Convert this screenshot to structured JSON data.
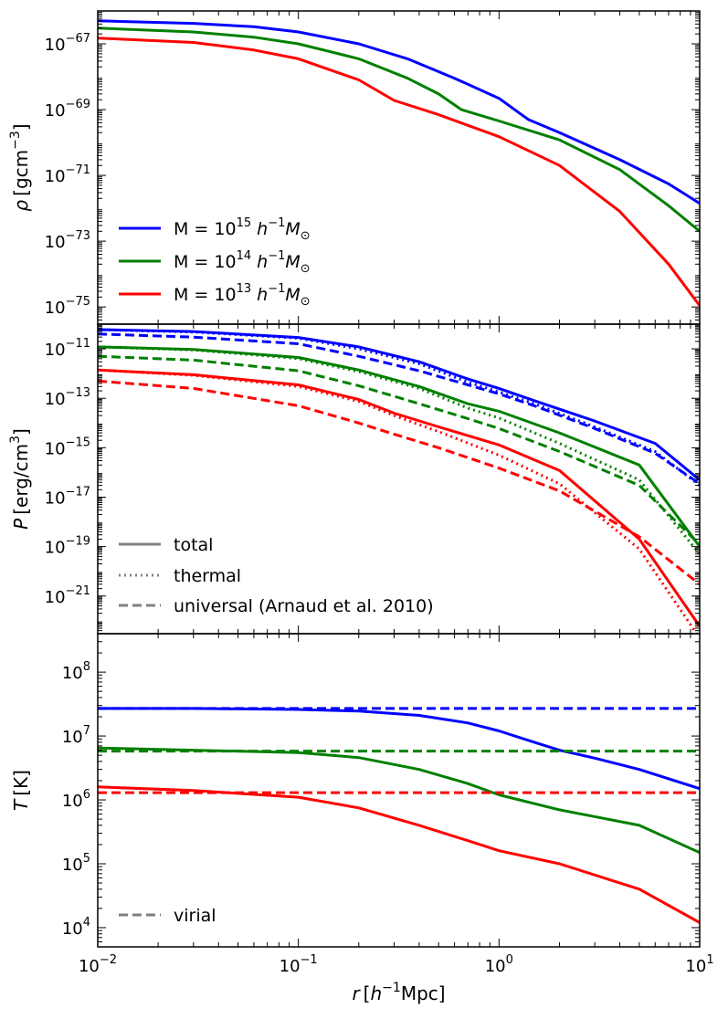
{
  "figure": {
    "xlabel_main": "r",
    "xlabel_unit_open": "[",
    "xlabel_unit_h": "h",
    "xlabel_unit_exp": "−1",
    "xlabel_unit_rest": "Mpc]",
    "x_ticks": [
      {
        "value": 0.01,
        "base": "10",
        "exp": "−2"
      },
      {
        "value": 0.1,
        "base": "10",
        "exp": "−1"
      },
      {
        "value": 1,
        "base": "10",
        "exp": "0"
      },
      {
        "value": 10,
        "base": "10",
        "exp": "1"
      }
    ]
  },
  "chart_data": [
    {
      "type": "line",
      "panel": "density",
      "xscale": "log",
      "yscale": "log",
      "xlim": [
        0.01,
        10
      ],
      "ylim": [
        3e-76,
        1e-66
      ],
      "ylabel": {
        "symbol": "ρ",
        "unit_open": "[gcm",
        "unit_exp": "−3",
        "unit_close": "]"
      },
      "y_ticks": [
        {
          "value": 1e-67,
          "base": "10",
          "exp": "−67"
        },
        {
          "value": 1e-69,
          "base": "10",
          "exp": "−69"
        },
        {
          "value": 1e-71,
          "base": "10",
          "exp": "−71"
        },
        {
          "value": 1e-73,
          "base": "10",
          "exp": "−73"
        },
        {
          "value": 1e-75,
          "base": "10",
          "exp": "−75"
        }
      ],
      "legend": {
        "position": "lower-left",
        "entries": [
          {
            "series": "M15",
            "prefix": "M = 10",
            "exp": "15",
            "mid": " h",
            "mid_exp": "−1",
            "suffix": "M",
            "sub": "⊙"
          },
          {
            "series": "M14",
            "prefix": "M = 10",
            "exp": "14",
            "mid": " h",
            "mid_exp": "−1",
            "suffix": "M",
            "sub": "⊙"
          },
          {
            "series": "M13",
            "prefix": "M = 10",
            "exp": "13",
            "mid": " h",
            "mid_exp": "−1",
            "suffix": "M",
            "sub": "⊙"
          }
        ]
      },
      "series": [
        {
          "name": "M15",
          "color": "#0000ff",
          "style": "solid",
          "x": [
            0.01,
            0.03,
            0.06,
            0.1,
            0.2,
            0.35,
            0.6,
            1.0,
            1.4,
            2.0,
            4.0,
            7.0,
            10.0
          ],
          "y": [
            5e-67,
            4.2e-67,
            3.3e-67,
            2.3e-67,
            1e-67,
            3.5e-68,
            9e-69,
            2.2e-69,
            5e-70,
            2e-70,
            3e-71,
            5.5e-72,
            1.4e-72
          ]
        },
        {
          "name": "M14",
          "color": "#008000",
          "style": "solid",
          "x": [
            0.01,
            0.03,
            0.06,
            0.1,
            0.2,
            0.35,
            0.5,
            0.65,
            1.0,
            2.0,
            4.0,
            7.0,
            10.0
          ],
          "y": [
            3e-67,
            2.3e-67,
            1.6e-67,
            1e-67,
            3.5e-68,
            9e-69,
            3e-69,
            1e-69,
            4.5e-70,
            1.2e-70,
            1.5e-71,
            1.2e-72,
            2e-73
          ]
        },
        {
          "name": "M13",
          "color": "#ff0000",
          "style": "solid",
          "x": [
            0.01,
            0.03,
            0.06,
            0.1,
            0.2,
            0.3,
            0.5,
            1.0,
            2.0,
            4.0,
            7.0,
            10.0
          ],
          "y": [
            1.5e-67,
            1.1e-67,
            6.5e-68,
            3.5e-68,
            8e-69,
            1.9e-69,
            7e-70,
            1.5e-70,
            2e-71,
            8e-73,
            2e-74,
            1.1e-75
          ]
        }
      ]
    },
    {
      "type": "line",
      "panel": "pressure",
      "xscale": "log",
      "yscale": "log",
      "xlim": [
        0.01,
        10
      ],
      "ylim": [
        3e-23,
        1e-10
      ],
      "ylabel": {
        "symbol": "P",
        "unit_open": "[erg/cm",
        "unit_exp": "3",
        "unit_close": "]"
      },
      "y_ticks": [
        {
          "value": 1e-11,
          "base": "10",
          "exp": "−11"
        },
        {
          "value": 1e-13,
          "base": "10",
          "exp": "−13"
        },
        {
          "value": 1e-15,
          "base": "10",
          "exp": "−15"
        },
        {
          "value": 1e-17,
          "base": "10",
          "exp": "−17"
        },
        {
          "value": 1e-19,
          "base": "10",
          "exp": "−19"
        },
        {
          "value": 1e-21,
          "base": "10",
          "exp": "−21"
        }
      ],
      "legend": {
        "position": "lower-left",
        "color": "#808080",
        "entries": [
          {
            "style": "solid",
            "label": "total"
          },
          {
            "style": "dotted",
            "label": "thermal"
          },
          {
            "style": "dashed",
            "label": "universal (Arnaud et al. 2010)"
          }
        ]
      },
      "series": [
        {
          "name": "M15 total",
          "color": "#0000ff",
          "style": "solid",
          "x": [
            0.01,
            0.03,
            0.1,
            0.2,
            0.4,
            0.7,
            1.0,
            1.5,
            3.0,
            6.0,
            10.0
          ],
          "y": [
            6e-11,
            5e-11,
            2.9e-11,
            1.2e-11,
            3e-12,
            6e-13,
            2.5e-13,
            8e-14,
            1.2e-14,
            1.5e-15,
            5e-17
          ]
        },
        {
          "name": "M15 thermal",
          "color": "#0000ff",
          "style": "dotted",
          "x": [
            0.01,
            0.03,
            0.1,
            0.2,
            0.4,
            0.7,
            1.0,
            1.5,
            3.0,
            6.0,
            10.0
          ],
          "y": [
            6e-11,
            4.8e-11,
            2.7e-11,
            1e-11,
            2.5e-12,
            4.5e-13,
            1.8e-13,
            6e-14,
            7e-15,
            7e-16,
            3e-17
          ]
        },
        {
          "name": "M15 universal",
          "color": "#0000ff",
          "style": "dashed",
          "x": [
            0.01,
            0.03,
            0.1,
            0.2,
            0.4,
            0.7,
            1.0,
            1.5,
            3.0,
            6.0,
            10.0
          ],
          "y": [
            4e-11,
            3e-11,
            1.6e-11,
            5e-12,
            1.3e-12,
            3.5e-13,
            1.5e-13,
            5e-14,
            6e-15,
            6e-16,
            3.5e-17
          ]
        },
        {
          "name": "M14 total",
          "color": "#008000",
          "style": "solid",
          "x": [
            0.01,
            0.03,
            0.1,
            0.2,
            0.4,
            0.7,
            1.0,
            2.0,
            5.0,
            10.0
          ],
          "y": [
            1.2e-11,
            9.5e-12,
            4.5e-12,
            1.4e-12,
            3e-13,
            6e-14,
            3e-14,
            4e-15,
            2e-16,
            1e-19
          ]
        },
        {
          "name": "M14 thermal",
          "color": "#008000",
          "style": "dotted",
          "x": [
            0.01,
            0.03,
            0.1,
            0.2,
            0.4,
            0.7,
            1.0,
            2.0,
            5.0,
            10.0
          ],
          "y": [
            1.2e-11,
            9e-12,
            4e-12,
            1.2e-12,
            2.5e-13,
            4e-14,
            1.6e-14,
            1.5e-15,
            5e-17,
            5e-20
          ]
        },
        {
          "name": "M14 universal",
          "color": "#008000",
          "style": "dashed",
          "x": [
            0.01,
            0.03,
            0.1,
            0.2,
            0.4,
            0.7,
            1.0,
            2.0,
            5.0,
            10.0
          ],
          "y": [
            5e-12,
            3.5e-12,
            1.3e-12,
            3.2e-13,
            6e-14,
            1.5e-14,
            6e-15,
            7e-16,
            3e-17,
            1.2e-19
          ]
        },
        {
          "name": "M13 total",
          "color": "#ff0000",
          "style": "solid",
          "x": [
            0.01,
            0.03,
            0.1,
            0.2,
            0.3,
            0.5,
            1.0,
            2.0,
            5.0,
            10.0
          ],
          "y": [
            1.4e-12,
            9e-13,
            3.5e-13,
            9e-14,
            2.5e-14,
            7e-15,
            1.3e-15,
            1.2e-16,
            2e-19,
            6e-23
          ]
        },
        {
          "name": "M13 thermal",
          "color": "#ff0000",
          "style": "dotted",
          "x": [
            0.01,
            0.03,
            0.1,
            0.2,
            0.3,
            0.5,
            1.0,
            2.0,
            5.0,
            10.0
          ],
          "y": [
            1.4e-12,
            8.5e-13,
            3e-13,
            7.5e-14,
            2e-14,
            4.5e-15,
            5e-16,
            3.5e-17,
            8e-20,
            2e-23
          ]
        },
        {
          "name": "M13 universal",
          "color": "#ff0000",
          "style": "dashed",
          "x": [
            0.01,
            0.03,
            0.1,
            0.2,
            0.3,
            0.5,
            1.0,
            2.0,
            5.0,
            10.0
          ],
          "y": [
            5e-13,
            2.5e-13,
            5e-14,
            1e-14,
            3.5e-15,
            1e-15,
            1.5e-16,
            1.8e-17,
            2.5e-19,
            3e-21
          ]
        }
      ]
    },
    {
      "type": "line",
      "panel": "temperature",
      "xscale": "log",
      "yscale": "log",
      "xlim": [
        0.01,
        10
      ],
      "ylim": [
        5000,
        400000000.0
      ],
      "ylabel": {
        "symbol": "T",
        "unit_open": "[K]",
        "unit_exp": "",
        "unit_close": ""
      },
      "y_ticks": [
        {
          "value": 100000000.0,
          "base": "10",
          "exp": "8"
        },
        {
          "value": 10000000.0,
          "base": "10",
          "exp": "7"
        },
        {
          "value": 1000000.0,
          "base": "10",
          "exp": "6"
        },
        {
          "value": 100000.0,
          "base": "10",
          "exp": "5"
        },
        {
          "value": 10000.0,
          "base": "10",
          "exp": "4"
        }
      ],
      "legend": {
        "position": "lower-left",
        "color": "#808080",
        "entries": [
          {
            "style": "dashed",
            "label": "virial"
          }
        ]
      },
      "series": [
        {
          "name": "M15 total",
          "color": "#0000ff",
          "style": "solid",
          "x": [
            0.01,
            0.03,
            0.1,
            0.2,
            0.4,
            0.7,
            1.0,
            1.5,
            2.0,
            3.0,
            5.0,
            10.0
          ],
          "y": [
            27000000.0,
            27000000.0,
            26000000.0,
            24500000.0,
            21000000.0,
            16000000.0,
            12000000.0,
            8000000.0,
            6000000.0,
            4500000.0,
            3000000.0,
            1500000.0
          ]
        },
        {
          "name": "M15 virial",
          "color": "#0000ff",
          "style": "dashed",
          "x": [
            0.01,
            10.0
          ],
          "y": [
            27000000.0,
            27000000.0
          ]
        },
        {
          "name": "M14 total",
          "color": "#008000",
          "style": "solid",
          "x": [
            0.01,
            0.03,
            0.1,
            0.2,
            0.4,
            0.7,
            1.0,
            2.0,
            5.0,
            10.0
          ],
          "y": [
            6500000.0,
            6000000.0,
            5500000.0,
            4600000.0,
            3000000.0,
            1800000.0,
            1200000.0,
            700000.0,
            400000.0,
            150000.0
          ]
        },
        {
          "name": "M14 virial",
          "color": "#008000",
          "style": "dashed",
          "x": [
            0.01,
            10.0
          ],
          "y": [
            5800000.0,
            5800000.0
          ]
        },
        {
          "name": "M13 total",
          "color": "#ff0000",
          "style": "solid",
          "x": [
            0.01,
            0.03,
            0.1,
            0.2,
            0.4,
            0.7,
            1.0,
            2.0,
            5.0,
            10.0
          ],
          "y": [
            1600000.0,
            1400000.0,
            1100000.0,
            750000.0,
            400000.0,
            230000.0,
            160000.0,
            100000.0,
            40000.0,
            12000.0
          ]
        },
        {
          "name": "M13 virial",
          "color": "#ff0000",
          "style": "dashed",
          "x": [
            0.01,
            10.0
          ],
          "y": [
            1300000.0,
            1300000.0
          ]
        }
      ]
    }
  ]
}
